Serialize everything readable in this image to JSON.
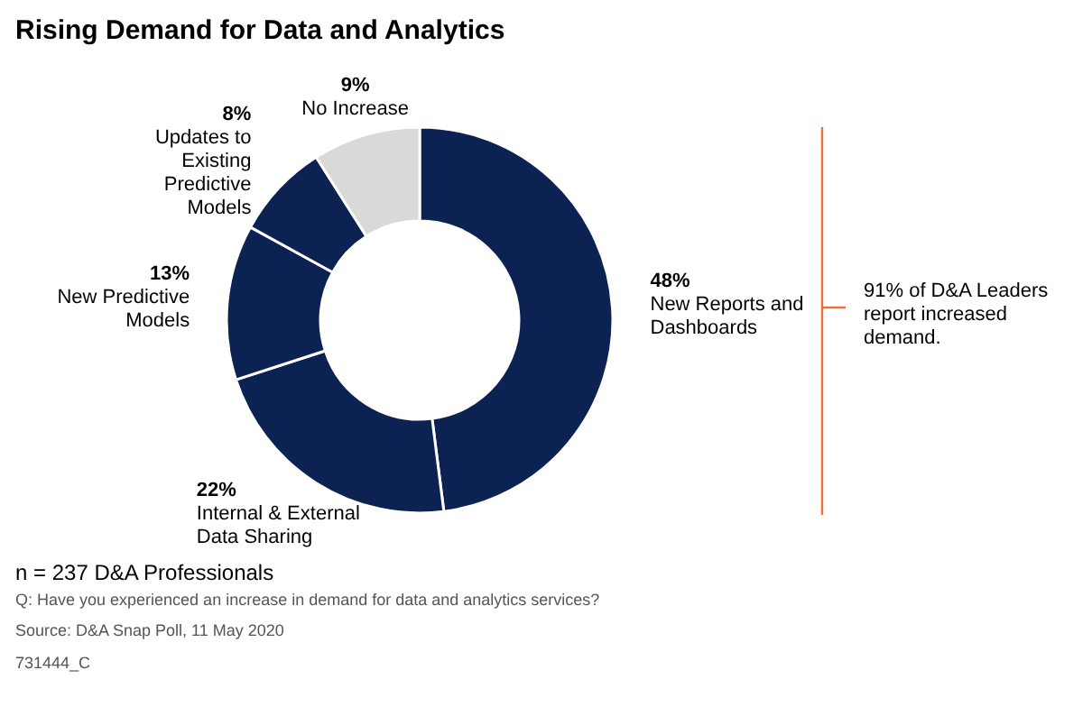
{
  "chart_data": {
    "type": "donut",
    "title": "Rising Demand for Data and Analytics",
    "categories": [
      "New Reports and Dashboards",
      "Internal & External Data Sharing",
      "New Predictive Models",
      "Updates to Existing Predictive Models",
      "No Increase"
    ],
    "values": [
      48,
      22,
      13,
      8,
      9
    ],
    "value_labels": [
      "48%",
      "22%",
      "13%",
      "8%",
      "9%"
    ],
    "colors": [
      "#0b2253",
      "#0b2253",
      "#0b2253",
      "#0b2253",
      "#d9d9d9"
    ],
    "annotations": [
      "91% of D&A Leaders report increased demand.",
      "n = 237 D&A Professionals",
      "Q: Have you experienced an increase in demand for data and analytics services?",
      "Source: D&A Snap Poll, 11 May 2020",
      "731444_C"
    ]
  }
}
